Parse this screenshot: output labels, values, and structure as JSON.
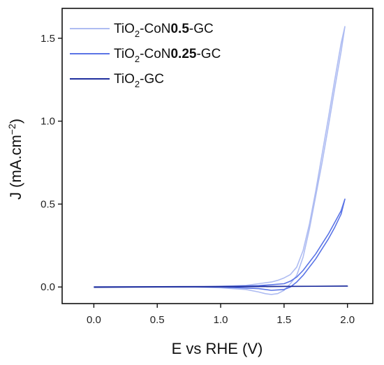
{
  "chart_data": {
    "type": "line",
    "xlabel": "E vs RHE (V)",
    "ylabel": {
      "main": "J (mA.cm",
      "sup": "−2",
      "close": ")"
    },
    "xlim": [
      -0.25,
      2.2
    ],
    "ylim": [
      -0.1,
      1.68
    ],
    "xticks": [
      0.0,
      0.5,
      1.0,
      1.5,
      2.0
    ],
    "xtick_labels": [
      "0.0",
      "0.5",
      "1.0",
      "1.5",
      "2.0"
    ],
    "yticks": [
      0.0,
      0.5,
      1.0,
      1.5
    ],
    "ytick_labels": [
      "0.0",
      "0.5",
      "1.0",
      "1.5"
    ],
    "grid": false,
    "legend_position": "top-left",
    "series": [
      {
        "name": "TiO2-CoN0.5-GC",
        "legend": {
          "a": "TiO",
          "sub": "2",
          "b": "-CoN",
          "bold": "0.5",
          "c": "-GC"
        },
        "color": "#aebcf2",
        "x": [
          0.0,
          0.2,
          0.5,
          0.8,
          1.0,
          1.2,
          1.3,
          1.4,
          1.45,
          1.5,
          1.55,
          1.6,
          1.65,
          1.7,
          1.75,
          1.8,
          1.85,
          1.9,
          1.95,
          1.98,
          1.95,
          1.9,
          1.85,
          1.8,
          1.75,
          1.7,
          1.65,
          1.6,
          1.55,
          1.5,
          1.45,
          1.4,
          1.35,
          1.3,
          1.2,
          1.0,
          0.8,
          0.5,
          0.2,
          0.0
        ],
        "y": [
          0.0,
          0.0,
          0.0,
          0.0,
          0.005,
          0.01,
          0.02,
          0.03,
          0.04,
          0.055,
          0.075,
          0.12,
          0.22,
          0.38,
          0.58,
          0.8,
          1.02,
          1.25,
          1.47,
          1.57,
          1.42,
          1.2,
          0.97,
          0.75,
          0.55,
          0.35,
          0.18,
          0.07,
          0.02,
          -0.02,
          -0.04,
          -0.045,
          -0.04,
          -0.03,
          -0.015,
          -0.005,
          0.0,
          0.0,
          0.0,
          0.0
        ]
      },
      {
        "name": "TiO2-CoN0.25-GC",
        "legend": {
          "a": "TiO",
          "sub": "2",
          "b": "-CoN",
          "bold": "0.25",
          "c": "-GC"
        },
        "color": "#5a74e6",
        "x": [
          0.0,
          0.5,
          1.0,
          1.3,
          1.5,
          1.55,
          1.6,
          1.65,
          1.7,
          1.75,
          1.8,
          1.85,
          1.9,
          1.95,
          1.98,
          1.95,
          1.9,
          1.85,
          1.8,
          1.75,
          1.7,
          1.65,
          1.6,
          1.55,
          1.5,
          1.4,
          1.3,
          1.0,
          0.5,
          0.0
        ],
        "y": [
          0.0,
          0.0,
          0.002,
          0.008,
          0.02,
          0.035,
          0.06,
          0.1,
          0.15,
          0.2,
          0.26,
          0.32,
          0.39,
          0.46,
          0.53,
          0.44,
          0.36,
          0.29,
          0.23,
          0.17,
          0.12,
          0.07,
          0.03,
          0.0,
          -0.015,
          -0.02,
          -0.01,
          0.0,
          0.0,
          0.0
        ]
      },
      {
        "name": "TiO2-GC",
        "legend": {
          "a": "TiO",
          "sub": "2",
          "b": "-GC",
          "bold": "",
          "c": ""
        },
        "color": "#1f2f9e",
        "x": [
          0.0,
          0.5,
          1.0,
          1.5,
          2.0,
          1.5,
          1.0,
          0.5,
          0.0
        ],
        "y": [
          0.0,
          0.002,
          0.003,
          0.004,
          0.005,
          0.003,
          0.001,
          0.0,
          -0.002
        ]
      }
    ]
  }
}
